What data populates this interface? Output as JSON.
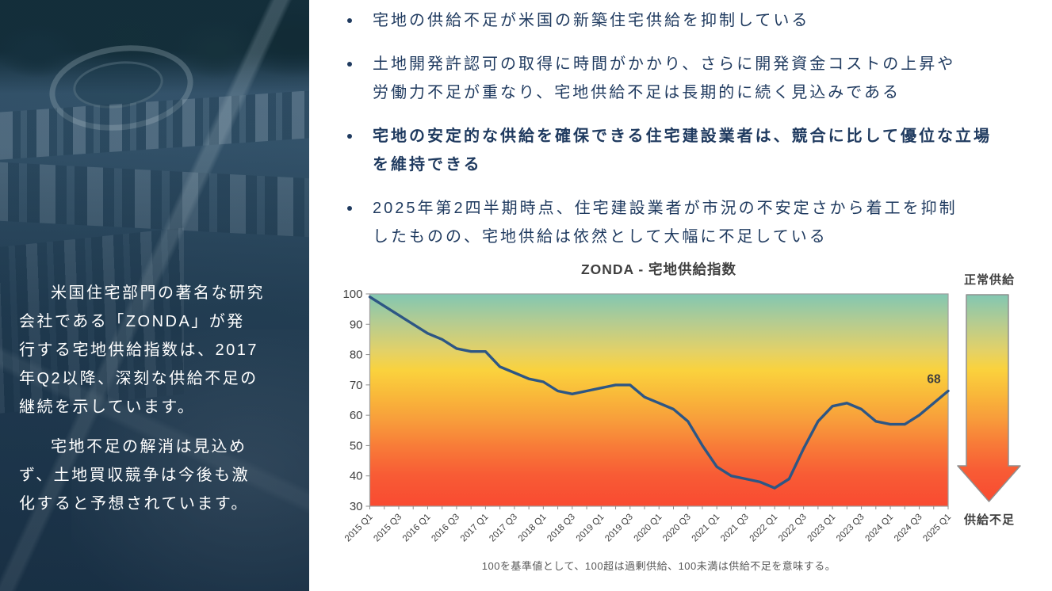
{
  "sidebar": {
    "paragraphs": [
      "米国住宅部門の著名な研究\n会社である「ZONDA」が発\n行する宅地供給指数は、2017\n年Q2以降、深刻な供給不足の\n継続を示しています。",
      "宅地不足の解消は見込め\nず、土地買収競争は今後も激\n化すると予想されています。"
    ]
  },
  "bullets": [
    "宅地の供給不足が米国の新築住宅供給を抑制している",
    "土地開発許認可の取得に時間がかかり、さらに開発資金コストの上昇や\n労働力不足が重なり、宅地供給不足は長期的に続く見込みである",
    "宅地の安定的な供給を確保できる住宅建設業者は、競合に比して優位な立場\nを維持できる",
    "2025年第2四半期時点、住宅建設業者が市況の不安定さから着工を抑制\nしたものの、宅地供給は依然として大幅に不足している"
  ],
  "chart": {
    "title": "ZONDA - 宅地供給指数",
    "caption": "100を基準値として、100超は過剰供給、100未満は供給不足を意味する。",
    "arrow_top_label": "正常供給",
    "arrow_bottom_label": "供給不足",
    "last_value_label": "68"
  },
  "chart_data": {
    "type": "line",
    "title": "ZONDA - 宅地供給指数",
    "series_name": "宅地供給指数",
    "x": [
      "2015 Q1",
      "2015 Q2",
      "2015 Q3",
      "2015 Q4",
      "2016 Q1",
      "2016 Q2",
      "2016 Q3",
      "2016 Q4",
      "2017 Q1",
      "2017 Q2",
      "2017 Q3",
      "2017 Q4",
      "2018 Q1",
      "2018 Q2",
      "2018 Q3",
      "2018 Q4",
      "2019 Q1",
      "2019 Q2",
      "2019 Q3",
      "2019 Q4",
      "2020 Q1",
      "2020 Q2",
      "2020 Q3",
      "2020 Q4",
      "2021 Q1",
      "2021 Q2",
      "2021 Q3",
      "2021 Q4",
      "2022 Q1",
      "2022 Q2",
      "2022 Q3",
      "2022 Q4",
      "2023 Q1",
      "2023 Q2",
      "2023 Q3",
      "2023 Q4",
      "2024 Q1",
      "2024 Q2",
      "2024 Q3",
      "2024 Q4",
      "2025 Q1"
    ],
    "values": [
      99,
      96,
      93,
      90,
      87,
      85,
      82,
      81,
      81,
      76,
      74,
      72,
      71,
      68,
      67,
      68,
      69,
      70,
      70,
      66,
      64,
      62,
      58,
      50,
      43,
      40,
      39,
      38,
      36,
      39,
      49,
      58,
      63,
      64,
      62,
      58,
      57,
      57,
      60,
      64,
      68
    ],
    "x_tick_labels": [
      "2015 Q1",
      "2015 Q3",
      "2016 Q1",
      "2016 Q3",
      "2017 Q1",
      "2017 Q3",
      "2018 Q1",
      "2018 Q3",
      "2019 Q1",
      "2019 Q3",
      "2020 Q1",
      "2020 Q3",
      "2021 Q1",
      "2021 Q3",
      "2022 Q1",
      "2022 Q3",
      "2023 Q1",
      "2023 Q3",
      "2024 Q1",
      "2024 Q3",
      "2025 Q1"
    ],
    "y_ticks": [
      100,
      90,
      80,
      70,
      60,
      50,
      40,
      30
    ],
    "ylim": [
      30,
      100
    ],
    "grid": false,
    "legend": "none",
    "annotation": {
      "x": "2025 Q1",
      "label": "68"
    },
    "line_color": "#2d5684",
    "background_gradient_stops": [
      {
        "pos": 0.0,
        "color": "#82c7b2"
      },
      {
        "pos": 0.14,
        "color": "#b7cc8f"
      },
      {
        "pos": 0.27,
        "color": "#e3d167"
      },
      {
        "pos": 0.36,
        "color": "#fad23d"
      },
      {
        "pos": 0.48,
        "color": "#f9b83a"
      },
      {
        "pos": 0.6,
        "color": "#f89c3b"
      },
      {
        "pos": 0.72,
        "color": "#f87b38"
      },
      {
        "pos": 0.85,
        "color": "#f85c35"
      },
      {
        "pos": 1.0,
        "color": "#f94a31"
      }
    ]
  },
  "colors": {
    "bullet_text": "#1f3a5f",
    "sidebar_text": "#ffffff",
    "sidebar_overlay": "#2c4a62",
    "chart_line": "#2d5684",
    "axis_text": "#3f3f3f",
    "caption_text": "#595959",
    "plot_border": "#9e9e9e",
    "gradient_top": "#82c7b2",
    "gradient_mid": "#fad23d",
    "gradient_bottom": "#f94a31"
  }
}
